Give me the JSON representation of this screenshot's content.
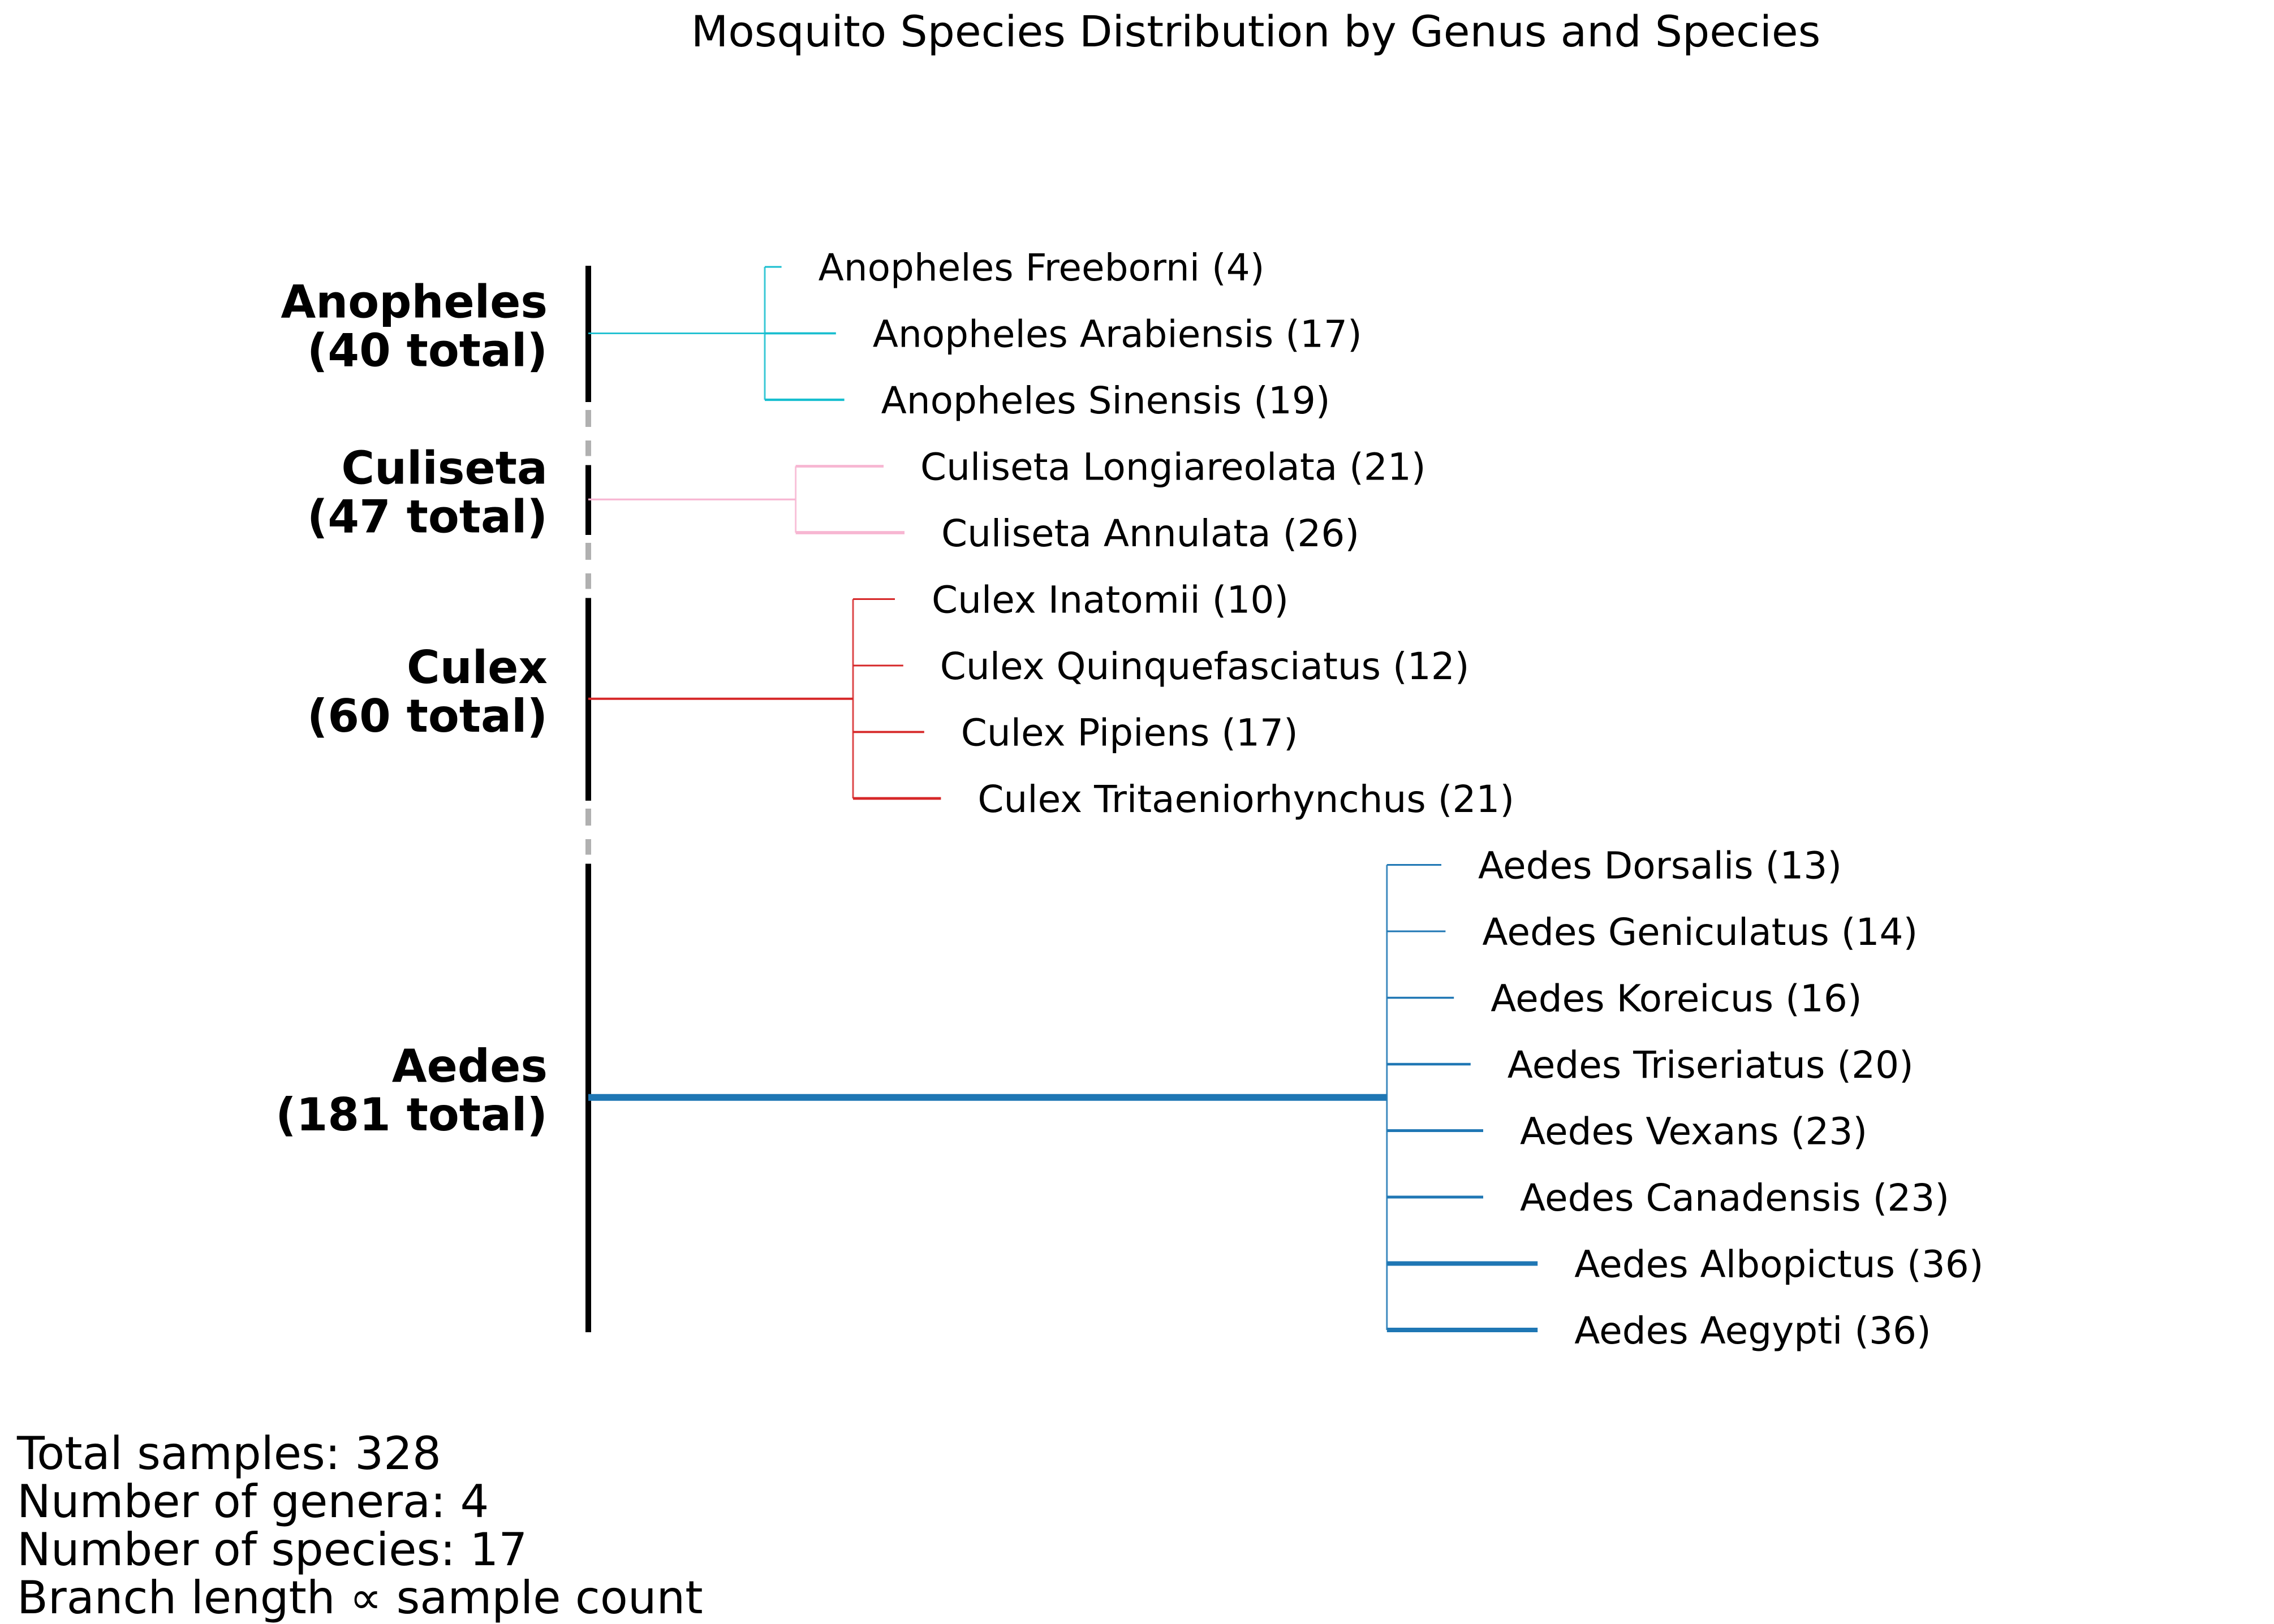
{
  "chart_data": {
    "type": "dendrogram",
    "title": "Mosquito Species Distribution by Genus and Species",
    "genera": [
      {
        "name": "Anopheles",
        "total": 40,
        "total_label": "(40 total)",
        "color": "#17becf",
        "species": [
          {
            "label": "Anopheles Freeborni (4)",
            "count": 4
          },
          {
            "label": "Anopheles Arabiensis (17)",
            "count": 17
          },
          {
            "label": "Anopheles Sinensis (19)",
            "count": 19
          }
        ]
      },
      {
        "name": "Culiseta",
        "total": 47,
        "total_label": "(47 total)",
        "color": "#f7b6d2",
        "species": [
          {
            "label": "Culiseta Longiareolata (21)",
            "count": 21
          },
          {
            "label": "Culiseta Annulata (26)",
            "count": 26
          }
        ]
      },
      {
        "name": "Culex",
        "total": 60,
        "total_label": "(60 total)",
        "color": "#d62728",
        "species": [
          {
            "label": "Culex Inatomii (10)",
            "count": 10
          },
          {
            "label": "Culex Quinquefasciatus (12)",
            "count": 12
          },
          {
            "label": "Culex Pipiens (17)",
            "count": 17
          },
          {
            "label": "Culex Tritaeniorhynchus (21)",
            "count": 21
          }
        ]
      },
      {
        "name": "Aedes",
        "total": 181,
        "total_label": "(181 total)",
        "color": "#1f77b4",
        "species": [
          {
            "label": "Aedes Dorsalis (13)",
            "count": 13
          },
          {
            "label": "Aedes Geniculatus (14)",
            "count": 14
          },
          {
            "label": "Aedes Koreicus (16)",
            "count": 16
          },
          {
            "label": "Aedes Triseriatus (20)",
            "count": 20
          },
          {
            "label": "Aedes Vexans (23)",
            "count": 23
          },
          {
            "label": "Aedes Canadensis (23)",
            "count": 23
          },
          {
            "label": "Aedes Albopictus (36)",
            "count": 36
          },
          {
            "label": "Aedes Aegypti (36)",
            "count": 36
          }
        ]
      }
    ],
    "stats": {
      "total_samples": "Total samples: 328",
      "num_genera": "Number of genera: 4",
      "num_species": "Number of species: 17",
      "branch_note": "Branch length ∝ sample count"
    }
  }
}
